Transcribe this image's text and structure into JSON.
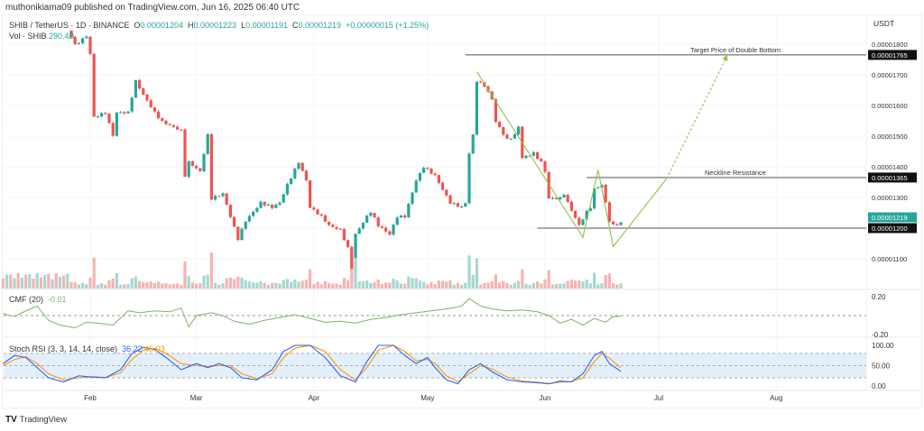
{
  "header": {
    "published": "muthonikiama09 published on TradingView.com, Jun 16, 2025 06:40 UTC",
    "symbol": "SHIB / TetherUS · 1D · BINANCE",
    "open_label": "O",
    "open": "0.00001204",
    "high_label": "H",
    "high": "0.00001223",
    "low_label": "L",
    "low": "0.00001191",
    "close_label": "C",
    "close": "0.00001219",
    "change": "+0.00000015 (+1.25%)",
    "volume_label": "Vol · SHIB",
    "volume": "290.4B"
  },
  "currency": "USDT",
  "brand": "TradingView",
  "colors": {
    "up": "#26a69a",
    "down": "#ef5350",
    "pattern": "#8bc34a",
    "cmf": "#7cb26a",
    "k": "#2962ff",
    "d": "#ff9800",
    "band": "#e3f0fb"
  },
  "chart_data": [
    {
      "type": "candlestick",
      "title": "SHIB / TetherUS 1D",
      "x_axis": {
        "origin": "Feb 1",
        "unit": "day",
        "tick_labels": [
          {
            "label": "Feb",
            "day": 0
          },
          {
            "label": "Mar",
            "day": 28
          },
          {
            "label": "Apr",
            "day": 59
          },
          {
            "label": "May",
            "day": 89
          },
          {
            "label": "Jun",
            "day": 120
          },
          {
            "label": "Jul",
            "day": 150
          },
          {
            "label": "Aug",
            "day": 181
          }
        ]
      },
      "y_axis": {
        "ylim": [
          1.06e-05,
          1.84e-05
        ],
        "ticks": [
          "0.00001100",
          "0.00001200",
          "0.00001300",
          "0.00001400",
          "0.00001500",
          "0.00001600",
          "0.00001700",
          "0.00001800"
        ]
      },
      "close_keypoints": [
        [
          -5,
          1.826e-05
        ],
        [
          -4,
          1.797e-05
        ],
        [
          -1,
          1.826e-05
        ],
        [
          0,
          1.768e-05
        ],
        [
          1,
          1.562e-05
        ],
        [
          4,
          1.577e-05
        ],
        [
          6,
          1.503e-05
        ],
        [
          7,
          1.577e-05
        ],
        [
          10,
          1.577e-05
        ],
        [
          12,
          1.68e-05
        ],
        [
          14,
          1.635e-05
        ],
        [
          17,
          1.577e-05
        ],
        [
          19,
          1.547e-05
        ],
        [
          24,
          1.518e-05
        ],
        [
          25,
          1.371e-05
        ],
        [
          26,
          1.415e-05
        ],
        [
          29,
          1.385e-05
        ],
        [
          31,
          1.503e-05
        ],
        [
          32,
          1.297e-05
        ],
        [
          35,
          1.312e-05
        ],
        [
          37,
          1.238e-05
        ],
        [
          39,
          1.165e-05
        ],
        [
          41,
          1.224e-05
        ],
        [
          43,
          1.253e-05
        ],
        [
          45,
          1.283e-05
        ],
        [
          48,
          1.268e-05
        ],
        [
          50,
          1.283e-05
        ],
        [
          52,
          1.341e-05
        ],
        [
          55,
          1.415e-05
        ],
        [
          57,
          1.356e-05
        ],
        [
          58,
          1.268e-05
        ],
        [
          61,
          1.238e-05
        ],
        [
          63,
          1.209e-05
        ],
        [
          66,
          1.194e-05
        ],
        [
          68,
          1.135e-05
        ],
        [
          69,
          1.062e-05
        ],
        [
          70,
          1.18e-05
        ],
        [
          73,
          1.238e-05
        ],
        [
          74,
          1.253e-05
        ],
        [
          76,
          1.209e-05
        ],
        [
          79,
          1.18e-05
        ],
        [
          81,
          1.238e-05
        ],
        [
          83,
          1.238e-05
        ],
        [
          86,
          1.356e-05
        ],
        [
          88,
          1.4e-05
        ],
        [
          91,
          1.371e-05
        ],
        [
          93,
          1.326e-05
        ],
        [
          95,
          1.283e-05
        ],
        [
          98,
          1.268e-05
        ],
        [
          99,
          1.283e-05
        ],
        [
          100,
          1.444e-05
        ],
        [
          101,
          1.503e-05
        ],
        [
          102,
          1.68e-05
        ],
        [
          104,
          1.665e-05
        ],
        [
          106,
          1.621e-05
        ],
        [
          107,
          1.547e-05
        ],
        [
          110,
          1.488e-05
        ],
        [
          112,
          1.503e-05
        ],
        [
          113,
          1.532e-05
        ],
        [
          114,
          1.429e-05
        ],
        [
          117,
          1.444e-05
        ],
        [
          119,
          1.415e-05
        ],
        [
          120,
          1.385e-05
        ],
        [
          121,
          1.297e-05
        ],
        [
          124,
          1.297e-05
        ],
        [
          125,
          1.312e-05
        ],
        [
          126,
          1.283e-05
        ],
        [
          129,
          1.209e-05
        ],
        [
          131,
          1.253e-05
        ],
        [
          132,
          1.268e-05
        ],
        [
          133,
          1.327e-05
        ],
        [
          135,
          1.341e-05
        ],
        [
          136,
          1.283e-05
        ],
        [
          137,
          1.224e-05
        ],
        [
          138,
          1.209e-05
        ],
        [
          140,
          1.219e-05
        ]
      ],
      "price_labels": [
        {
          "value": 1.765e-05,
          "text": "0.00001765",
          "style": "black"
        },
        {
          "value": 1.365e-05,
          "text": "0.00001365",
          "style": "black"
        },
        {
          "value": 1.219e-05,
          "text": "0.00001219",
          "style": "green"
        },
        {
          "value": 1.2e-05,
          "text": "0.00001200",
          "style": "black"
        }
      ],
      "annotations": [
        {
          "text": "Target Price of Double Bottom",
          "value": 1.765e-05,
          "from_day": 99
        },
        {
          "text": "Neckline Resistance",
          "value": 1.365e-05,
          "from_day": 131
        },
        {
          "text": "",
          "value": 1.2e-05,
          "from_day": 118
        }
      ],
      "pattern_points": [
        [
          102,
          1.71e-05
        ],
        [
          130,
          1.17e-05
        ],
        [
          134,
          1.39e-05
        ],
        [
          138,
          1.14e-05
        ],
        [
          152,
          1.36e-05
        ]
      ],
      "projection_points": [
        [
          152,
          1.36e-05
        ],
        [
          168,
          1.76e-05
        ]
      ]
    },
    {
      "type": "line",
      "title": "CMF (20)",
      "last_value": "-0.01",
      "ylim": [
        -0.2,
        0.2
      ],
      "tick_labels": [
        "0.20",
        "-0.20"
      ],
      "points": [
        [
          -23,
          0.02
        ],
        [
          -20,
          -0.01
        ],
        [
          -17,
          0.05
        ],
        [
          -14,
          0.1
        ],
        [
          -11,
          -0.05
        ],
        [
          -8,
          -0.1
        ],
        [
          -4,
          -0.13
        ],
        [
          -1,
          -0.07
        ],
        [
          2,
          -0.08
        ],
        [
          6,
          -0.1
        ],
        [
          10,
          0.05
        ],
        [
          13,
          0.03
        ],
        [
          17,
          0.05
        ],
        [
          21,
          0.04
        ],
        [
          24,
          0.08
        ],
        [
          26,
          -0.12
        ],
        [
          28,
          0.0
        ],
        [
          32,
          0.03
        ],
        [
          35,
          0.0
        ],
        [
          38,
          -0.06
        ],
        [
          42,
          -0.09
        ],
        [
          46,
          -0.05
        ],
        [
          50,
          -0.02
        ],
        [
          54,
          0.01
        ],
        [
          58,
          -0.03
        ],
        [
          62,
          -0.07
        ],
        [
          66,
          -0.06
        ],
        [
          70,
          -0.08
        ],
        [
          74,
          -0.04
        ],
        [
          78,
          -0.02
        ],
        [
          82,
          0.01
        ],
        [
          86,
          0.03
        ],
        [
          90,
          0.05
        ],
        [
          94,
          0.07
        ],
        [
          98,
          0.1
        ],
        [
          100,
          0.18
        ],
        [
          103,
          0.1
        ],
        [
          106,
          0.07
        ],
        [
          110,
          0.05
        ],
        [
          114,
          0.06
        ],
        [
          118,
          0.04
        ],
        [
          121,
          0.0
        ],
        [
          124,
          -0.08
        ],
        [
          127,
          -0.04
        ],
        [
          130,
          -0.1
        ],
        [
          133,
          -0.03
        ],
        [
          136,
          -0.07
        ],
        [
          138,
          -0.01
        ],
        [
          140,
          -0.01
        ]
      ]
    },
    {
      "type": "line",
      "title": "Stoch RSI (3, 3, 14, 14, close)",
      "k_value": "36.22",
      "d_value": "45.03",
      "ylim": [
        0,
        100
      ],
      "band": [
        20,
        80
      ],
      "tick_labels": [
        "100.00",
        "50.00",
        "0.00"
      ],
      "k": [
        [
          -23,
          55
        ],
        [
          -20,
          75
        ],
        [
          -17,
          70
        ],
        [
          -14,
          45
        ],
        [
          -11,
          20
        ],
        [
          -7,
          10
        ],
        [
          -3,
          25
        ],
        [
          0,
          22
        ],
        [
          4,
          20
        ],
        [
          8,
          40
        ],
        [
          11,
          80
        ],
        [
          14,
          95
        ],
        [
          17,
          90
        ],
        [
          20,
          70
        ],
        [
          24,
          40
        ],
        [
          28,
          55
        ],
        [
          31,
          45
        ],
        [
          34,
          55
        ],
        [
          37,
          45
        ],
        [
          40,
          20
        ],
        [
          44,
          15
        ],
        [
          48,
          40
        ],
        [
          51,
          85
        ],
        [
          54,
          100
        ],
        [
          58,
          100
        ],
        [
          62,
          70
        ],
        [
          66,
          25
        ],
        [
          70,
          10
        ],
        [
          73,
          60
        ],
        [
          76,
          100
        ],
        [
          80,
          100
        ],
        [
          83,
          75
        ],
        [
          86,
          55
        ],
        [
          89,
          70
        ],
        [
          91,
          45
        ],
        [
          94,
          15
        ],
        [
          97,
          5
        ],
        [
          100,
          40
        ],
        [
          103,
          55
        ],
        [
          106,
          35
        ],
        [
          110,
          15
        ],
        [
          114,
          10
        ],
        [
          118,
          8
        ],
        [
          121,
          5
        ],
        [
          124,
          12
        ],
        [
          127,
          10
        ],
        [
          130,
          30
        ],
        [
          133,
          75
        ],
        [
          135,
          85
        ],
        [
          137,
          55
        ],
        [
          140,
          36
        ]
      ],
      "d": [
        [
          -23,
          50
        ],
        [
          -20,
          65
        ],
        [
          -17,
          72
        ],
        [
          -14,
          55
        ],
        [
          -11,
          30
        ],
        [
          -7,
          15
        ],
        [
          -3,
          20
        ],
        [
          0,
          23
        ],
        [
          4,
          21
        ],
        [
          8,
          32
        ],
        [
          11,
          65
        ],
        [
          14,
          88
        ],
        [
          17,
          93
        ],
        [
          20,
          80
        ],
        [
          24,
          55
        ],
        [
          28,
          50
        ],
        [
          31,
          48
        ],
        [
          34,
          50
        ],
        [
          37,
          50
        ],
        [
          40,
          30
        ],
        [
          44,
          18
        ],
        [
          48,
          30
        ],
        [
          51,
          70
        ],
        [
          54,
          93
        ],
        [
          58,
          100
        ],
        [
          62,
          85
        ],
        [
          66,
          40
        ],
        [
          70,
          15
        ],
        [
          73,
          45
        ],
        [
          76,
          88
        ],
        [
          80,
          100
        ],
        [
          83,
          85
        ],
        [
          86,
          62
        ],
        [
          89,
          65
        ],
        [
          91,
          55
        ],
        [
          94,
          25
        ],
        [
          97,
          10
        ],
        [
          100,
          30
        ],
        [
          103,
          50
        ],
        [
          106,
          42
        ],
        [
          110,
          22
        ],
        [
          114,
          12
        ],
        [
          118,
          9
        ],
        [
          121,
          6
        ],
        [
          124,
          9
        ],
        [
          127,
          11
        ],
        [
          130,
          20
        ],
        [
          133,
          60
        ],
        [
          135,
          80
        ],
        [
          137,
          68
        ],
        [
          140,
          45
        ]
      ]
    }
  ]
}
